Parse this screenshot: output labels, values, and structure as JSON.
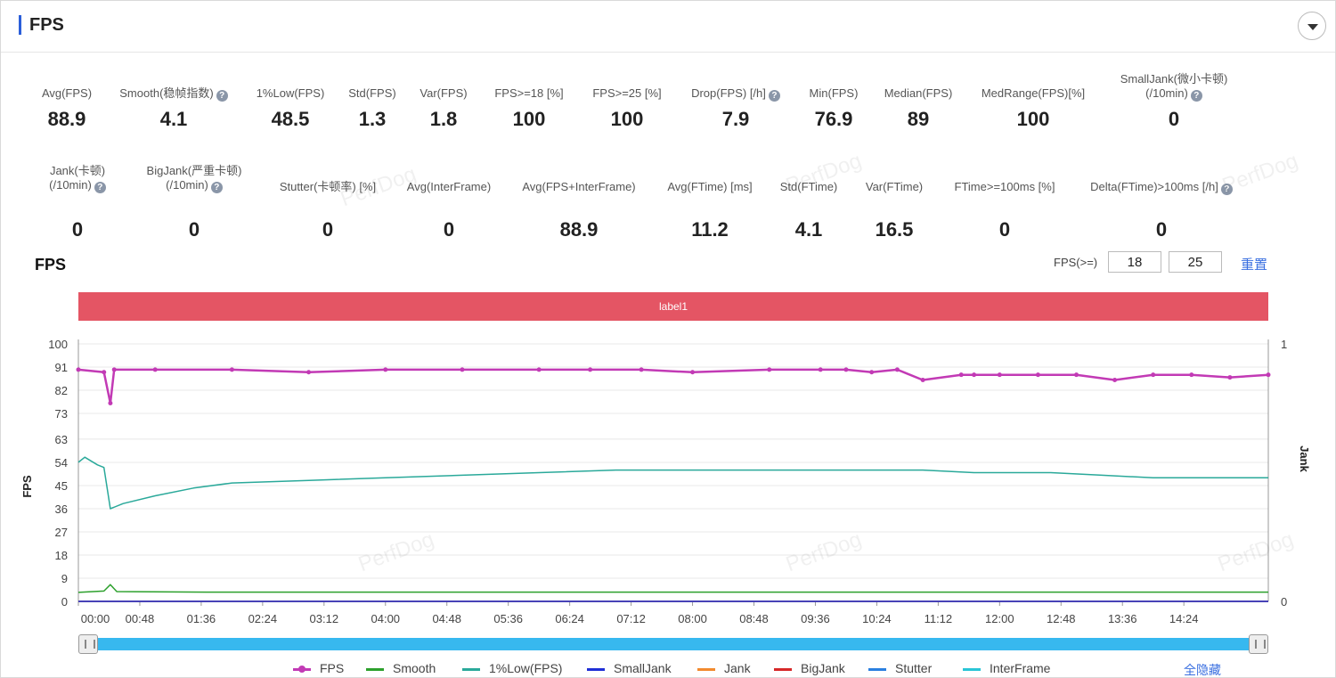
{
  "header": {
    "title": "FPS"
  },
  "metrics": [
    {
      "label": "Avg(FPS)",
      "value": "88.9",
      "help": false
    },
    {
      "label": "Smooth(稳帧指数)",
      "value": "4.1",
      "help": true
    },
    {
      "label": "1%Low(FPS)",
      "value": "48.5",
      "help": false
    },
    {
      "label": "Std(FPS)",
      "value": "1.3",
      "help": false
    },
    {
      "label": "Var(FPS)",
      "value": "1.8",
      "help": false
    },
    {
      "label": "FPS>=18 [%]",
      "value": "100",
      "help": false
    },
    {
      "label": "FPS>=25 [%]",
      "value": "100",
      "help": false
    },
    {
      "label": "Drop(FPS) [/h]",
      "value": "7.9",
      "help": true
    },
    {
      "label": "Min(FPS)",
      "value": "76.9",
      "help": false
    },
    {
      "label": "Median(FPS)",
      "value": "89",
      "help": false
    },
    {
      "label": "MedRange(FPS)[%]",
      "value": "100",
      "help": false
    },
    {
      "label": "SmallJank(微小卡顿)",
      "label2": "(/10min)",
      "value": "0",
      "help": true
    },
    {
      "label": "Jank(卡顿)",
      "label2": "(/10min)",
      "value": "0",
      "help": true
    },
    {
      "label": "BigJank(严重卡顿)",
      "label2": "(/10min)",
      "value": "0",
      "help": true
    },
    {
      "label": "Stutter(卡顿率) [%]",
      "value": "0",
      "help": false
    },
    {
      "label": "Avg(InterFrame)",
      "value": "0",
      "help": false
    },
    {
      "label": "Avg(FPS+InterFrame)",
      "value": "88.9",
      "help": false
    },
    {
      "label": "Avg(FTime) [ms]",
      "value": "11.2",
      "help": false
    },
    {
      "label": "Std(FTime)",
      "value": "4.1",
      "help": false
    },
    {
      "label": "Var(FTime)",
      "value": "16.5",
      "help": false
    },
    {
      "label": "FTime>=100ms [%]",
      "value": "0",
      "help": false
    },
    {
      "label": "Delta(FTime)>100ms [/h]",
      "value": "0",
      "help": true
    }
  ],
  "chart_section": {
    "title": "FPS",
    "threshold_label": "FPS(>=)",
    "threshold_1": "18",
    "threshold_2": "25",
    "reset_label": "重置",
    "label_band": "label1",
    "hide_all_label": "全隐藏",
    "watermark": "PerfDog"
  },
  "chart_data": {
    "type": "line",
    "y_label": "FPS",
    "y2_label": "Jank",
    "y_ticks": [
      "100",
      "91",
      "82",
      "73",
      "63",
      "54",
      "45",
      "36",
      "27",
      "18",
      "9",
      "0"
    ],
    "y2_ticks": [
      "1",
      "0"
    ],
    "ylim": [
      0,
      100
    ],
    "y2lim": [
      0,
      1
    ],
    "x_ticks": [
      "00:00",
      "00:48",
      "01:36",
      "02:24",
      "03:12",
      "04:00",
      "04:48",
      "05:36",
      "06:24",
      "07:12",
      "08:00",
      "08:48",
      "09:36",
      "10:24",
      "11:12",
      "12:00",
      "12:48",
      "13:36",
      "14:24"
    ],
    "xlim_seconds": [
      0,
      930
    ],
    "grid": true,
    "legend_position": "bottom",
    "series": [
      {
        "name": "FPS",
        "color": "#c23ab5",
        "marker": true,
        "x": [
          0,
          20,
          25,
          28,
          60,
          120,
          180,
          240,
          300,
          360,
          400,
          440,
          480,
          540,
          580,
          600,
          620,
          640,
          660,
          690,
          700,
          720,
          750,
          780,
          810,
          840,
          870,
          900,
          930
        ],
        "y": [
          90,
          89,
          77,
          90,
          90,
          90,
          89,
          90,
          90,
          90,
          90,
          90,
          89,
          90,
          90,
          90,
          89,
          90,
          86,
          88,
          88,
          88,
          88,
          88,
          86,
          88,
          88,
          87,
          88
        ]
      },
      {
        "name": "Smooth",
        "color": "#2ca02c",
        "x": [
          0,
          20,
          25,
          30,
          100,
          200,
          300,
          400,
          500,
          600,
          700,
          800,
          900,
          930
        ],
        "y": [
          3.5,
          4,
          6.5,
          3.8,
          3.6,
          3.6,
          3.6,
          3.6,
          3.6,
          3.6,
          3.6,
          3.6,
          3.6,
          3.6
        ]
      },
      {
        "name": "1%Low(FPS)",
        "color": "#2aa99a",
        "x": [
          0,
          5,
          15,
          20,
          25,
          35,
          60,
          90,
          120,
          180,
          240,
          300,
          360,
          420,
          480,
          540,
          580,
          620,
          660,
          700,
          760,
          800,
          840,
          930
        ],
        "y": [
          54,
          56,
          53,
          52,
          36,
          38,
          41,
          44,
          46,
          47,
          48,
          49,
          50,
          51,
          51,
          51,
          51,
          51,
          51,
          50,
          50,
          49,
          48,
          48
        ]
      },
      {
        "name": "SmallJank",
        "color": "#1f2fd6",
        "x": [
          0,
          930
        ],
        "y": [
          0,
          0
        ]
      },
      {
        "name": "Jank",
        "color": "#f28a2e",
        "x": [
          0,
          930
        ],
        "y": [
          0,
          0
        ]
      },
      {
        "name": "BigJank",
        "color": "#d62728",
        "x": [
          0,
          930
        ],
        "y": [
          0,
          0
        ]
      },
      {
        "name": "Stutter",
        "color": "#2a7fe0",
        "x": [
          0,
          930
        ],
        "y": [
          0,
          0
        ]
      },
      {
        "name": "InterFrame",
        "color": "#29c5d6",
        "x": [
          0,
          930
        ],
        "y": [
          0,
          0
        ]
      }
    ]
  }
}
